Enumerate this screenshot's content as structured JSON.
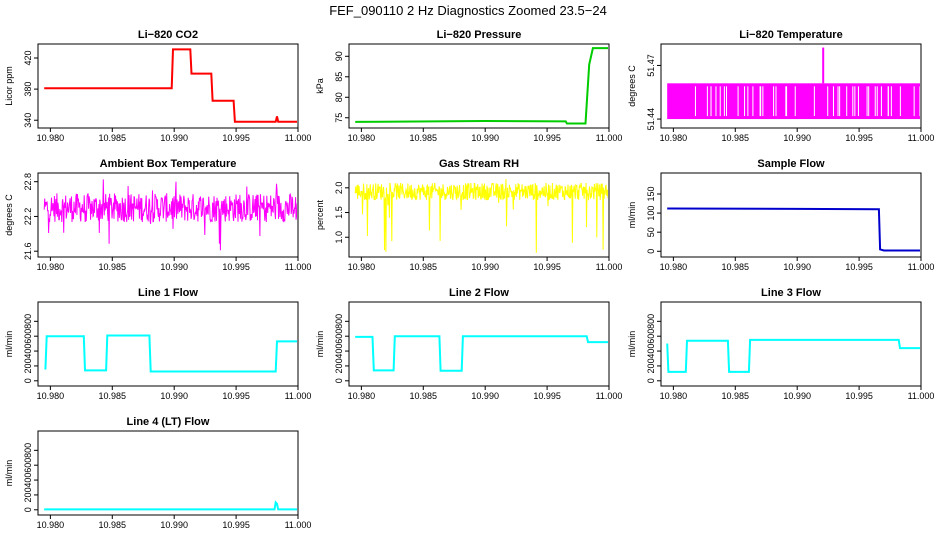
{
  "title": "FEF_090110  2 Hz Diagnostics Zoomed 23.5−24",
  "colors": {
    "red": "#ff0000",
    "green": "#00cc00",
    "magenta": "#ff00ff",
    "yellow": "#ffff00",
    "blue": "#0000cc",
    "cyan": "#00ffff"
  },
  "chart_data": [
    {
      "type": "line",
      "title": "Li−820 CO2",
      "ylabel": "Licor ppm",
      "color": "red",
      "xlim": [
        10.979,
        11.0
      ],
      "ylim": [
        330,
        438
      ],
      "xticks": [
        "10.980",
        "10.985",
        "10.990",
        "10.995",
        "11.000"
      ],
      "yticks": [
        {
          "v": 340,
          "label": "340"
        },
        {
          "v": 380,
          "label": "380"
        },
        {
          "v": 420,
          "label": "420"
        }
      ],
      "series": [
        {
          "x": [
            10.9795,
            10.9898,
            10.9899,
            10.9913,
            10.9914,
            10.993,
            10.9931,
            10.9948,
            10.9949,
            10.9982,
            10.9983,
            10.9984,
            11.0
          ],
          "y": [
            381,
            381,
            431,
            431,
            400,
            400,
            365,
            365,
            338,
            338,
            345,
            338,
            338
          ]
        }
      ]
    },
    {
      "type": "line",
      "title": "Li−820 Pressure",
      "ylabel": "kPa",
      "color": "green",
      "xlim": [
        10.979,
        11.0
      ],
      "ylim": [
        72.5,
        93
      ],
      "xticks": [
        "10.980",
        "10.985",
        "10.990",
        "10.995",
        "11.000"
      ],
      "yticks": [
        {
          "v": 75,
          "label": "75"
        },
        {
          "v": 80,
          "label": "80"
        },
        {
          "v": 85,
          "label": "85"
        },
        {
          "v": 90,
          "label": "90"
        }
      ],
      "series": [
        {
          "x": [
            10.9795,
            10.99,
            10.9965,
            10.9966,
            10.9981,
            10.9984,
            10.9987,
            11.0
          ],
          "y": [
            74.0,
            74.2,
            74.1,
            73.6,
            73.6,
            88,
            92,
            92
          ]
        }
      ]
    },
    {
      "type": "line",
      "title": "Li−820 Temperature",
      "ylabel": "degrees C",
      "color": "magenta",
      "xlim": [
        10.979,
        11.0
      ],
      "ylim": [
        51.435,
        51.482
      ],
      "xticks": [
        "10.980",
        "10.985",
        "10.990",
        "10.995",
        "11.000"
      ],
      "yticks": [
        {
          "v": 51.44,
          "label": "51.44"
        },
        {
          "v": 51.47,
          "label": "51.47"
        }
      ],
      "series": [
        {
          "x": [
            10.9795,
            11.0
          ],
          "y": [
            51.44,
            51.46
          ]
        }
      ],
      "band": [
        51.44,
        51.46
      ],
      "spike": {
        "x": 10.9921,
        "y": 51.48
      }
    },
    {
      "type": "line",
      "title": "Ambient Box Temperature",
      "ylabel": "degrees C",
      "color": "magenta",
      "xlim": [
        10.979,
        11.0
      ],
      "ylim": [
        21.5,
        22.95
      ],
      "xticks": [
        "10.980",
        "10.985",
        "10.990",
        "10.995",
        "11.000"
      ],
      "yticks": [
        {
          "v": 21.6,
          "label": "21.6"
        },
        {
          "v": 22.2,
          "label": "22.2"
        },
        {
          "v": 22.8,
          "label": "22.8"
        }
      ],
      "series": [
        {
          "x": [
            10.9795,
            11.0
          ],
          "y": [
            22.35,
            22.35
          ]
        }
      ],
      "band": [
        22.1,
        22.6
      ],
      "noise_min": 21.6,
      "noise_max": 22.85
    },
    {
      "type": "line",
      "title": "Gas Stream RH",
      "ylabel": "percent",
      "color": "yellow",
      "xlim": [
        10.979,
        11.0
      ],
      "ylim": [
        0.6,
        2.3
      ],
      "xticks": [
        "10.980",
        "10.985",
        "10.990",
        "10.995",
        "11.000"
      ],
      "yticks": [
        {
          "v": 1.0,
          "label": "1.0"
        },
        {
          "v": 1.5,
          "label": "1.5"
        },
        {
          "v": 2.0,
          "label": "2.0"
        }
      ],
      "series": [
        {
          "x": [
            10.9795,
            11.0
          ],
          "y": [
            1.95,
            1.95
          ]
        }
      ],
      "band": [
        1.75,
        2.1
      ],
      "noise_min": 0.65,
      "noise_max": 2.2
    },
    {
      "type": "line",
      "title": "Sample Flow",
      "ylabel": "ml/min",
      "color": "blue",
      "xlim": [
        10.979,
        11.0
      ],
      "ylim": [
        -15,
        205
      ],
      "xticks": [
        "10.980",
        "10.985",
        "10.990",
        "10.995",
        "11.000"
      ],
      "yticks": [
        {
          "v": 0,
          "label": "0"
        },
        {
          "v": 50,
          "label": "50"
        },
        {
          "v": 100,
          "label": "100"
        },
        {
          "v": 150,
          "label": "150"
        }
      ],
      "series": [
        {
          "x": [
            10.9795,
            10.99,
            10.9966,
            10.9967,
            10.997,
            11.0
          ],
          "y": [
            112,
            111,
            110,
            5,
            2,
            2
          ]
        }
      ]
    },
    {
      "type": "line",
      "title": "Line 1 Flow",
      "ylabel": "ml/min",
      "color": "cyan",
      "xlim": [
        10.979,
        11.0
      ],
      "ylim": [
        -70,
        1060
      ],
      "xticks": [
        "10.980",
        "10.985",
        "10.990",
        "10.995",
        "11.000"
      ],
      "yticks": [
        {
          "v": 0,
          "label": "0"
        },
        {
          "v": 200,
          "label": "200"
        },
        {
          "v": 400,
          "label": "400"
        },
        {
          "v": 600,
          "label": "600"
        },
        {
          "v": 800,
          "label": "800"
        }
      ],
      "series": [
        {
          "x": [
            10.9796,
            10.9797,
            10.9827,
            10.9828,
            10.9845,
            10.9846,
            10.988,
            10.9881,
            10.9982,
            10.9983,
            11.0
          ],
          "y": [
            150,
            600,
            600,
            140,
            140,
            610,
            610,
            125,
            125,
            530,
            530
          ]
        }
      ]
    },
    {
      "type": "line",
      "title": "Line 2 Flow",
      "ylabel": "ml/min",
      "color": "cyan",
      "xlim": [
        10.979,
        11.0
      ],
      "ylim": [
        -70,
        1060
      ],
      "xticks": [
        "10.980",
        "10.985",
        "10.990",
        "10.995",
        "11.000"
      ],
      "yticks": [
        {
          "v": 0,
          "label": "0"
        },
        {
          "v": 200,
          "label": "200"
        },
        {
          "v": 400,
          "label": "400"
        },
        {
          "v": 600,
          "label": "600"
        },
        {
          "v": 800,
          "label": "800"
        }
      ],
      "series": [
        {
          "x": [
            10.9795,
            10.9809,
            10.981,
            10.9826,
            10.9827,
            10.9863,
            10.9864,
            10.9881,
            10.9882,
            10.9982,
            10.9983,
            11.0
          ],
          "y": [
            590,
            590,
            140,
            140,
            600,
            600,
            135,
            135,
            600,
            600,
            520,
            520
          ]
        }
      ]
    },
    {
      "type": "line",
      "title": "Line 3 Flow",
      "ylabel": "ml/min",
      "color": "cyan",
      "xlim": [
        10.979,
        11.0
      ],
      "ylim": [
        -70,
        1060
      ],
      "xticks": [
        "10.980",
        "10.985",
        "10.990",
        "10.995",
        "11.000"
      ],
      "yticks": [
        {
          "v": 0,
          "label": "0"
        },
        {
          "v": 200,
          "label": "200"
        },
        {
          "v": 400,
          "label": "400"
        },
        {
          "v": 600,
          "label": "600"
        },
        {
          "v": 800,
          "label": "800"
        }
      ],
      "series": [
        {
          "x": [
            10.9795,
            10.9796,
            10.9797,
            10.981,
            10.9811,
            10.9844,
            10.9845,
            10.9861,
            10.9862,
            10.9982,
            10.9983,
            11.0
          ],
          "y": [
            500,
            120,
            120,
            120,
            540,
            540,
            120,
            120,
            550,
            550,
            440,
            440
          ]
        }
      ]
    },
    {
      "type": "line",
      "title": "Line 4 (LT) Flow",
      "ylabel": "ml/min",
      "color": "cyan",
      "xlim": [
        10.979,
        11.0
      ],
      "ylim": [
        -70,
        1060
      ],
      "xticks": [
        "10.980",
        "10.985",
        "10.990",
        "10.995",
        "11.000"
      ],
      "yticks": [
        {
          "v": 0,
          "label": "0"
        },
        {
          "v": 200,
          "label": "200"
        },
        {
          "v": 400,
          "label": "400"
        },
        {
          "v": 600,
          "label": "600"
        },
        {
          "v": 800,
          "label": "800"
        }
      ],
      "series": [
        {
          "x": [
            10.9795,
            10.9981,
            10.9982,
            10.9983,
            10.9984,
            11.0
          ],
          "y": [
            5,
            5,
            100,
            80,
            5,
            5
          ]
        }
      ]
    }
  ]
}
